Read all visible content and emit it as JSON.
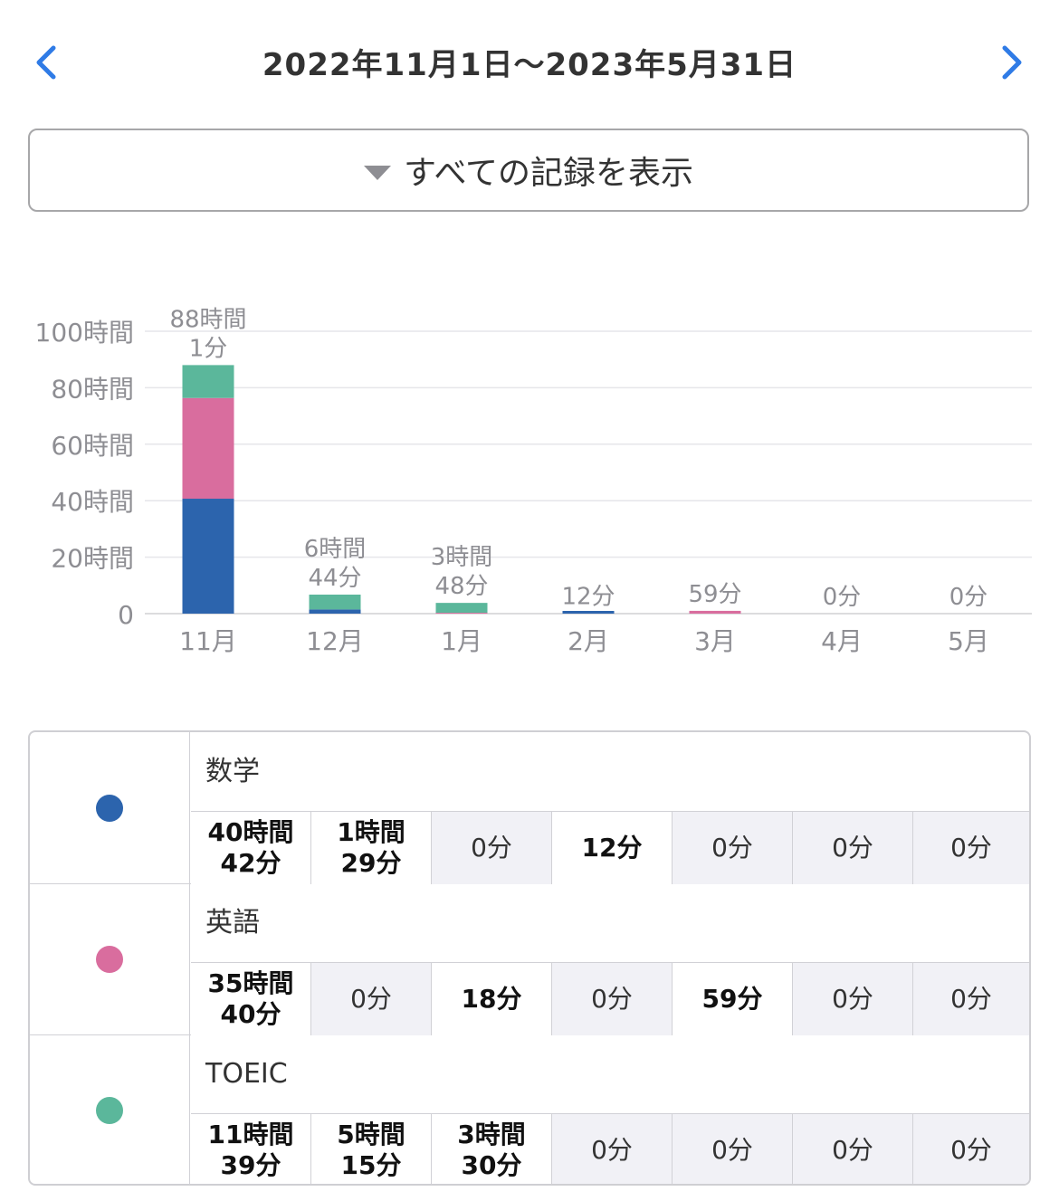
{
  "header": {
    "date_range": "2022年11月1日〜2023年5月31日",
    "prev_icon": "chevron-left-icon",
    "next_icon": "chevron-right-icon",
    "accent_color": "#2f7be6"
  },
  "filter": {
    "label": "すべての記録を表示",
    "icon": "triangle-down-icon"
  },
  "chart_data": {
    "type": "bar",
    "stacked": true,
    "categories": [
      "11月",
      "12月",
      "1月",
      "2月",
      "3月",
      "4月",
      "5月"
    ],
    "series": [
      {
        "name": "数学",
        "color": "#2c64ad",
        "values": [
          40.7,
          1.483,
          0,
          0.2,
          0,
          0,
          0
        ]
      },
      {
        "name": "英語",
        "color": "#d96d9e",
        "values": [
          35.667,
          0,
          0.3,
          0,
          0.983,
          0,
          0
        ]
      },
      {
        "name": "TOEIC",
        "color": "#5bb79b",
        "values": [
          11.65,
          5.25,
          3.5,
          0,
          0,
          0,
          0
        ]
      }
    ],
    "total_labels": [
      [
        "88時間",
        "1分"
      ],
      [
        "6時間",
        "44分"
      ],
      [
        "3時間",
        "48分"
      ],
      [
        "12分"
      ],
      [
        "59分"
      ],
      [
        "0分"
      ],
      [
        "0分"
      ]
    ],
    "y_ticks": [
      "0",
      "20時間",
      "40時間",
      "60時間",
      "80時間",
      "100時間"
    ],
    "y_tick_values": [
      0,
      20,
      40,
      60,
      80,
      100
    ],
    "ylim": [
      0,
      100
    ],
    "grid": true
  },
  "table": {
    "rows": [
      {
        "subject": "数学",
        "color": "#2c64ad",
        "cells": [
          "40時間\n42分",
          "1時間\n29分",
          "0分",
          "12分",
          "0分",
          "0分",
          "0分"
        ],
        "zero": [
          false,
          false,
          true,
          false,
          true,
          true,
          true
        ]
      },
      {
        "subject": "英語",
        "color": "#d96d9e",
        "cells": [
          "35時間\n40分",
          "0分",
          "18分",
          "0分",
          "59分",
          "0分",
          "0分"
        ],
        "zero": [
          false,
          true,
          false,
          true,
          false,
          true,
          true
        ]
      },
      {
        "subject": "TOEIC",
        "color": "#5bb79b",
        "cells": [
          "11時間\n39分",
          "5時間\n15分",
          "3時間\n30分",
          "0分",
          "0分",
          "0分",
          "0分"
        ],
        "zero": [
          false,
          false,
          false,
          true,
          true,
          true,
          true
        ]
      }
    ]
  }
}
